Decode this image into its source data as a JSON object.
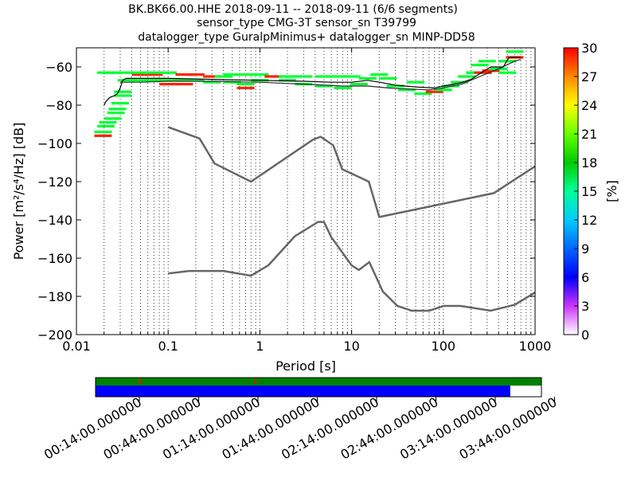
{
  "title_lines": [
    "BK.BK66.00.HHE   2018-09-11 -- 2018-09-11  (6/6 segments)",
    "sensor_type CMG-3T sensor_sn T39799",
    "datalogger_type GuralpMinimus+ datalogger_sn MINP-DD58"
  ],
  "chart_data": {
    "type": "heatmap",
    "xlabel": "Period [s]",
    "ylabel": "Power [m²/s⁴/Hz] [dB]",
    "xscale": "log",
    "xlim": [
      0.01,
      1000
    ],
    "ylim": [
      -200,
      -50
    ],
    "x_ticks": [
      {
        "v": 0.01,
        "label": "0.01"
      },
      {
        "v": 0.1,
        "label": "0.1"
      },
      {
        "v": 1,
        "label": "1"
      },
      {
        "v": 10,
        "label": "10"
      },
      {
        "v": 100,
        "label": "100"
      },
      {
        "v": 1000,
        "label": "1000"
      }
    ],
    "y_ticks": [
      {
        "v": -60,
        "label": "−60"
      },
      {
        "v": -80,
        "label": "−80"
      },
      {
        "v": -100,
        "label": "−100"
      },
      {
        "v": -120,
        "label": "−120"
      },
      {
        "v": -140,
        "label": "−140"
      },
      {
        "v": -160,
        "label": "−160"
      },
      {
        "v": -180,
        "label": "−180"
      },
      {
        "v": -200,
        "label": "−200"
      }
    ],
    "grid": "vertical dotted",
    "colorbar": {
      "label": "[%]",
      "range": [
        0,
        30
      ],
      "ticks": [
        {
          "v": 0,
          "label": "0"
        },
        {
          "v": 3,
          "label": "3"
        },
        {
          "v": 6,
          "label": "6"
        },
        {
          "v": 9,
          "label": "9"
        },
        {
          "v": 12,
          "label": "12"
        },
        {
          "v": 15,
          "label": "15"
        },
        {
          "v": 18,
          "label": "18"
        },
        {
          "v": 21,
          "label": "21"
        },
        {
          "v": 24,
          "label": "24"
        },
        {
          "v": 27,
          "label": "27"
        },
        {
          "v": 30,
          "label": "30"
        }
      ]
    },
    "nhnm": [
      [
        0.1,
        -91.5
      ],
      [
        0.22,
        -97.4
      ],
      [
        0.32,
        -110.5
      ],
      [
        0.8,
        -120
      ],
      [
        3.8,
        -98
      ],
      [
        4.6,
        -96.5
      ],
      [
        6.3,
        -101
      ],
      [
        7.9,
        -113.5
      ],
      [
        15.4,
        -120
      ],
      [
        20,
        -138.5
      ],
      [
        354.8,
        -126
      ],
      [
        1000,
        -112
      ]
    ],
    "nlnm": [
      [
        0.1,
        -168
      ],
      [
        0.17,
        -166.7
      ],
      [
        0.4,
        -166.7
      ],
      [
        0.8,
        -169.2
      ],
      [
        1.24,
        -163.7
      ],
      [
        2.4,
        -148.6
      ],
      [
        4.3,
        -141.1
      ],
      [
        5,
        -141.1
      ],
      [
        6,
        -149
      ],
      [
        10,
        -163.8
      ],
      [
        12,
        -166.2
      ],
      [
        15.6,
        -162.1
      ],
      [
        21.9,
        -177.5
      ],
      [
        31.6,
        -185
      ],
      [
        45,
        -187.5
      ],
      [
        70,
        -187.5
      ],
      [
        101,
        -185
      ],
      [
        154,
        -185
      ],
      [
        328,
        -187.5
      ],
      [
        600,
        -184.4
      ],
      [
        1000,
        -178
      ]
    ],
    "mode_line": [
      [
        0.02,
        -80
      ],
      [
        0.021,
        -78
      ],
      [
        0.023,
        -76
      ],
      [
        0.026,
        -75
      ],
      [
        0.028,
        -74
      ],
      [
        0.03,
        -71
      ],
      [
        0.032,
        -67
      ],
      [
        0.035,
        -66
      ],
      [
        0.05,
        -66
      ],
      [
        0.1,
        -66
      ],
      [
        0.3,
        -66.5
      ],
      [
        1,
        -67
      ],
      [
        3,
        -67.5
      ],
      [
        6,
        -68
      ],
      [
        10,
        -68
      ],
      [
        15,
        -67
      ],
      [
        20,
        -68
      ],
      [
        30,
        -69.5
      ],
      [
        50,
        -70.5
      ],
      [
        80,
        -71
      ],
      [
        100,
        -70
      ],
      [
        150,
        -68.5
      ],
      [
        200,
        -66.5
      ],
      [
        260,
        -63
      ],
      [
        330,
        -60
      ],
      [
        450,
        -60
      ],
      [
        520,
        -55
      ],
      [
        700,
        -55
      ]
    ],
    "mean_line": [
      [
        0.03,
        -68
      ],
      [
        0.05,
        -68
      ],
      [
        0.1,
        -67.5
      ],
      [
        0.3,
        -67.5
      ],
      [
        1,
        -68
      ],
      [
        3,
        -69
      ],
      [
        8,
        -70
      ],
      [
        15,
        -70
      ],
      [
        25,
        -71
      ],
      [
        40,
        -71.5
      ],
      [
        70,
        -72
      ],
      [
        100,
        -71
      ],
      [
        160,
        -69
      ],
      [
        250,
        -65
      ],
      [
        400,
        -61
      ],
      [
        600,
        -57
      ],
      [
        700,
        -56
      ]
    ],
    "histogram_cells": [
      {
        "p": 0.0195,
        "db": -96,
        "pct": 28
      },
      {
        "p": 0.0195,
        "db": -94,
        "pct": 18
      },
      {
        "p": 0.021,
        "db": -91,
        "pct": 18
      },
      {
        "p": 0.022,
        "db": -89,
        "pct": 18
      },
      {
        "p": 0.025,
        "db": -87,
        "pct": 17
      },
      {
        "p": 0.027,
        "db": -84,
        "pct": 18
      },
      {
        "p": 0.028,
        "db": -82,
        "pct": 17
      },
      {
        "p": 0.03,
        "db": -79,
        "pct": 18
      },
      {
        "p": 0.032,
        "db": -75,
        "pct": 18
      },
      {
        "p": 0.032,
        "db": -73,
        "pct": 17
      },
      {
        "p": 0.021,
        "db": -63,
        "pct": 18
      },
      {
        "p": 0.025,
        "db": -63,
        "pct": 17
      },
      {
        "p": 0.035,
        "db": -63,
        "pct": 18
      },
      {
        "p": 0.05,
        "db": -64,
        "pct": 27
      },
      {
        "p": 0.07,
        "db": -64,
        "pct": 27
      },
      {
        "p": 0.05,
        "db": -63,
        "pct": 18
      },
      {
        "p": 0.07,
        "db": -63,
        "pct": 18
      },
      {
        "p": 0.1,
        "db": -63,
        "pct": 18
      },
      {
        "p": 0.035,
        "db": -67,
        "pct": 17
      },
      {
        "p": 0.05,
        "db": -67,
        "pct": 18
      },
      {
        "p": 0.07,
        "db": -67,
        "pct": 18
      },
      {
        "p": 0.1,
        "db": -67,
        "pct": 18
      },
      {
        "p": 0.1,
        "db": -69,
        "pct": 28
      },
      {
        "p": 0.15,
        "db": -69,
        "pct": 27
      },
      {
        "p": 0.15,
        "db": -64,
        "pct": 28
      },
      {
        "p": 0.2,
        "db": -64,
        "pct": 27
      },
      {
        "p": 0.3,
        "db": -65,
        "pct": 27
      },
      {
        "p": 0.4,
        "db": -65,
        "pct": 17
      },
      {
        "p": 0.5,
        "db": -64,
        "pct": 18
      },
      {
        "p": 0.7,
        "db": -64,
        "pct": 18
      },
      {
        "p": 1,
        "db": -64,
        "pct": 18
      },
      {
        "p": 1.4,
        "db": -65,
        "pct": 27
      },
      {
        "p": 2,
        "db": -65,
        "pct": 18
      },
      {
        "p": 3,
        "db": -65,
        "pct": 18
      },
      {
        "p": 5,
        "db": -65,
        "pct": 18
      },
      {
        "p": 7,
        "db": -65,
        "pct": 18
      },
      {
        "p": 10,
        "db": -65,
        "pct": 17
      },
      {
        "p": 0.15,
        "db": -67,
        "pct": 18
      },
      {
        "p": 0.2,
        "db": -67,
        "pct": 18
      },
      {
        "p": 0.3,
        "db": -68,
        "pct": 18
      },
      {
        "p": 0.5,
        "db": -68,
        "pct": 17
      },
      {
        "p": 0.7,
        "db": -69,
        "pct": 18
      },
      {
        "p": 0.7,
        "db": -71,
        "pct": 27
      },
      {
        "p": 1,
        "db": -67,
        "pct": 18
      },
      {
        "p": 2,
        "db": -67,
        "pct": 17
      },
      {
        "p": 3,
        "db": -69,
        "pct": 18
      },
      {
        "p": 5,
        "db": -70,
        "pct": 18
      },
      {
        "p": 8,
        "db": -71,
        "pct": 18
      },
      {
        "p": 12,
        "db": -69,
        "pct": 17
      },
      {
        "p": 15,
        "db": -66,
        "pct": 18
      },
      {
        "p": 20,
        "db": -64,
        "pct": 18
      },
      {
        "p": 25,
        "db": -66,
        "pct": 17
      },
      {
        "p": 30,
        "db": -70,
        "pct": 18
      },
      {
        "p": 40,
        "db": -72,
        "pct": 18
      },
      {
        "p": 50,
        "db": -68,
        "pct": 17
      },
      {
        "p": 60,
        "db": -74,
        "pct": 18
      },
      {
        "p": 80,
        "db": -73,
        "pct": 27
      },
      {
        "p": 100,
        "db": -72,
        "pct": 18
      },
      {
        "p": 120,
        "db": -70,
        "pct": 17
      },
      {
        "p": 150,
        "db": -68,
        "pct": 17
      },
      {
        "p": 180,
        "db": -65,
        "pct": 18
      },
      {
        "p": 220,
        "db": -63,
        "pct": 18
      },
      {
        "p": 270,
        "db": -63,
        "pct": 27
      },
      {
        "p": 330,
        "db": -62,
        "pct": 28
      },
      {
        "p": 400,
        "db": -61,
        "pct": 18
      },
      {
        "p": 500,
        "db": -57,
        "pct": 17
      },
      {
        "p": 500,
        "db": -63,
        "pct": 18
      },
      {
        "p": 600,
        "db": -55,
        "pct": 28
      },
      {
        "p": 600,
        "db": -52,
        "pct": 17
      },
      {
        "p": 300,
        "db": -57,
        "pct": 18
      },
      {
        "p": 250,
        "db": -59,
        "pct": 17
      }
    ]
  },
  "time_bar": {
    "tick_labels": [
      "00:14:00.000000",
      "00:44:00.000000",
      "01:14:00.000000",
      "01:44:00.000000",
      "02:14:00.000000",
      "02:44:00.000000",
      "03:14:00.000000",
      "03:44:00.000000"
    ],
    "data_coverage_fraction": 0.93,
    "colors": {
      "coverage": "#008000",
      "used": "#0000ff",
      "gap": "#ff0000"
    }
  }
}
